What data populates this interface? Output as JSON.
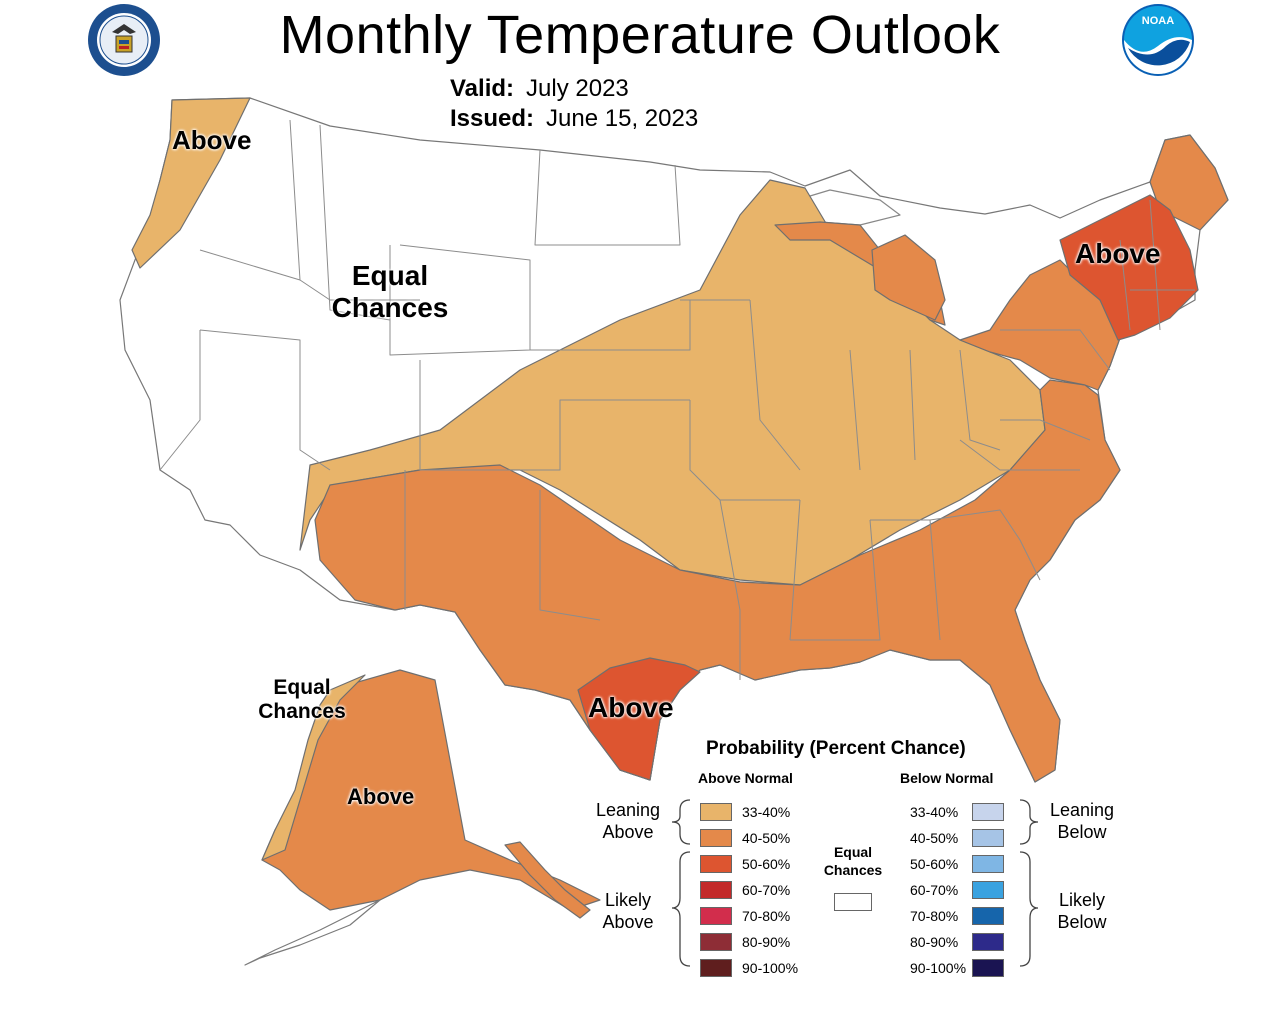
{
  "title": "Monthly Temperature Outlook",
  "valid": {
    "label": "Valid:",
    "value": "July 2023"
  },
  "issued": {
    "label": "Issued:",
    "value": "June 15, 2023"
  },
  "logos": {
    "left": "doc-seal-icon",
    "right": "noaa-logo-icon",
    "noaa_text": "NOAA"
  },
  "map_labels": {
    "pacific_nw": "Above",
    "west_equal_1": "Equal",
    "west_equal_2": "Chances",
    "northeast": "Above",
    "texas": "Above",
    "alaska_equal_1": "Equal",
    "alaska_equal_2": "Chances",
    "alaska_above": "Above"
  },
  "legend": {
    "title": "Probability (Percent Chance)",
    "above_header": "Above Normal",
    "below_header": "Below Normal",
    "leaning_above_1": "Leaning",
    "leaning_above_2": "Above",
    "likely_above_1": "Likely",
    "likely_above_2": "Above",
    "leaning_below_1": "Leaning",
    "leaning_below_2": "Below",
    "likely_below_1": "Likely",
    "likely_below_2": "Below",
    "equal_1": "Equal",
    "equal_2": "Chances",
    "above": [
      {
        "range": "33-40%",
        "color": "#e8b46a"
      },
      {
        "range": "40-50%",
        "color": "#e4894a"
      },
      {
        "range": "50-60%",
        "color": "#dd5530"
      },
      {
        "range": "60-70%",
        "color": "#c32a2a"
      },
      {
        "range": "70-80%",
        "color": "#d22d4c"
      },
      {
        "range": "80-90%",
        "color": "#8e2d36"
      },
      {
        "range": "90-100%",
        "color": "#5f1e1e"
      }
    ],
    "below": [
      {
        "range": "33-40%",
        "color": "#c7d4ec"
      },
      {
        "range": "40-50%",
        "color": "#a6c4e6"
      },
      {
        "range": "50-60%",
        "color": "#7fb6e4"
      },
      {
        "range": "60-70%",
        "color": "#3aa2e0"
      },
      {
        "range": "70-80%",
        "color": "#1665ab"
      },
      {
        "range": "80-90%",
        "color": "#2d2a8a"
      },
      {
        "range": "90-100%",
        "color": "#1a1452"
      }
    ]
  }
}
